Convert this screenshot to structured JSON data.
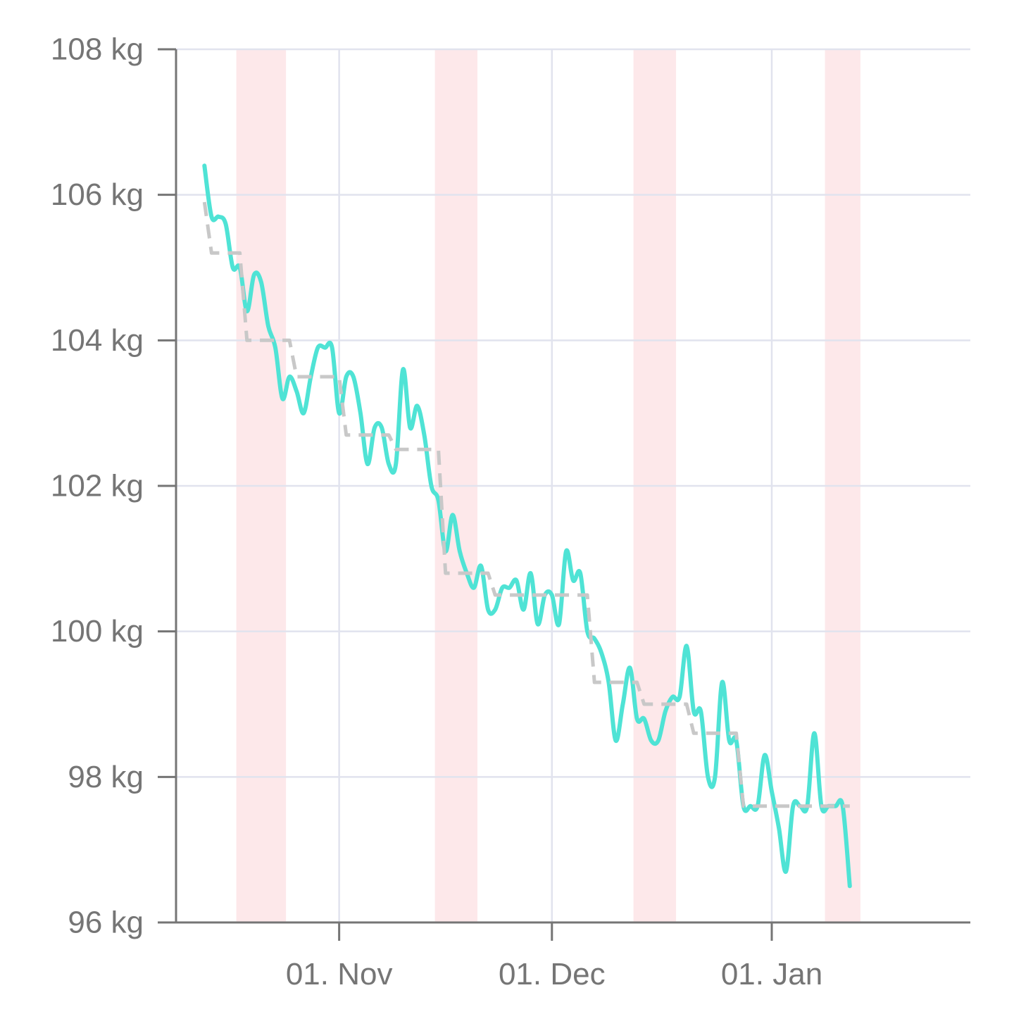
{
  "chart_data": {
    "type": "line",
    "title": "",
    "xlabel": "",
    "ylabel": "",
    "y_unit": "kg",
    "ylim": [
      96,
      108
    ],
    "y_ticks": [
      {
        "value": 108,
        "label": "108 kg"
      },
      {
        "value": 106,
        "label": "106 kg"
      },
      {
        "value": 104,
        "label": "104 kg"
      },
      {
        "value": 102,
        "label": "102 kg"
      },
      {
        "value": 100,
        "label": "100 kg"
      },
      {
        "value": 98,
        "label": "98 kg"
      },
      {
        "value": 96,
        "label": "96 kg"
      }
    ],
    "xlim": [
      "2023-10-09",
      "2024-01-29"
    ],
    "x_ticks": [
      {
        "date": "2023-11-01",
        "label": "01. Nov"
      },
      {
        "date": "2023-12-01",
        "label": "01. Dec"
      },
      {
        "date": "2024-01-01",
        "label": "01. Jan"
      }
    ],
    "grid": true,
    "legend": "none",
    "colors": {
      "weight_line": "#4fe3d5",
      "trend_line": "#c8c8c8",
      "band": "#fde8ea",
      "grid": "#e1e3ee",
      "axis": "#757575"
    },
    "highlight_bands": [
      {
        "start": "2023-10-18",
        "end": "2023-10-24"
      },
      {
        "start": "2023-11-15",
        "end": "2023-11-20"
      },
      {
        "start": "2023-12-13",
        "end": "2023-12-18"
      },
      {
        "start": "2024-01-09",
        "end": "2024-01-13"
      }
    ],
    "series": [
      {
        "style": "solid",
        "color": "#4fe3d5",
        "points": [
          [
            "2023-10-13",
            106.4
          ],
          [
            "2023-10-14",
            105.7
          ],
          [
            "2023-10-15",
            105.7
          ],
          [
            "2023-10-16",
            105.6
          ],
          [
            "2023-10-17",
            105.0
          ],
          [
            "2023-10-18",
            105.0
          ],
          [
            "2023-10-19",
            104.4
          ],
          [
            "2023-10-20",
            104.9
          ],
          [
            "2023-10-21",
            104.8
          ],
          [
            "2023-10-22",
            104.2
          ],
          [
            "2023-10-23",
            103.9
          ],
          [
            "2023-10-24",
            103.2
          ],
          [
            "2023-10-25",
            103.5
          ],
          [
            "2023-10-26",
            103.3
          ],
          [
            "2023-10-27",
            103.0
          ],
          [
            "2023-10-28",
            103.5
          ],
          [
            "2023-10-29",
            103.9
          ],
          [
            "2023-10-30",
            103.9
          ],
          [
            "2023-10-31",
            103.9
          ],
          [
            "2023-11-01",
            103.0
          ],
          [
            "2023-11-02",
            103.5
          ],
          [
            "2023-11-03",
            103.5
          ],
          [
            "2023-11-04",
            103.0
          ],
          [
            "2023-11-05",
            102.3
          ],
          [
            "2023-11-06",
            102.8
          ],
          [
            "2023-11-07",
            102.8
          ],
          [
            "2023-11-08",
            102.3
          ],
          [
            "2023-11-09",
            102.3
          ],
          [
            "2023-11-10",
            103.6
          ],
          [
            "2023-11-11",
            102.8
          ],
          [
            "2023-11-12",
            103.1
          ],
          [
            "2023-11-13",
            102.7
          ],
          [
            "2023-11-14",
            102.0
          ],
          [
            "2023-11-15",
            101.8
          ],
          [
            "2023-11-16",
            101.1
          ],
          [
            "2023-11-17",
            101.6
          ],
          [
            "2023-11-18",
            101.1
          ],
          [
            "2023-11-19",
            100.8
          ],
          [
            "2023-11-20",
            100.6
          ],
          [
            "2023-11-21",
            100.9
          ],
          [
            "2023-11-22",
            100.3
          ],
          [
            "2023-11-23",
            100.3
          ],
          [
            "2023-11-24",
            100.6
          ],
          [
            "2023-11-25",
            100.6
          ],
          [
            "2023-11-26",
            100.7
          ],
          [
            "2023-11-27",
            100.3
          ],
          [
            "2023-11-28",
            100.8
          ],
          [
            "2023-11-29",
            100.1
          ],
          [
            "2023-11-30",
            100.5
          ],
          [
            "2023-12-01",
            100.5
          ],
          [
            "2023-12-02",
            100.1
          ],
          [
            "2023-12-03",
            101.1
          ],
          [
            "2023-12-04",
            100.7
          ],
          [
            "2023-12-05",
            100.8
          ],
          [
            "2023-12-06",
            100.0
          ],
          [
            "2023-12-07",
            99.9
          ],
          [
            "2023-12-08",
            99.7
          ],
          [
            "2023-12-09",
            99.3
          ],
          [
            "2023-12-10",
            98.5
          ],
          [
            "2023-12-11",
            99.0
          ],
          [
            "2023-12-12",
            99.5
          ],
          [
            "2023-12-13",
            98.8
          ],
          [
            "2023-12-14",
            98.8
          ],
          [
            "2023-12-15",
            98.5
          ],
          [
            "2023-12-16",
            98.5
          ],
          [
            "2023-12-17",
            98.9
          ],
          [
            "2023-12-18",
            99.1
          ],
          [
            "2023-12-19",
            99.1
          ],
          [
            "2023-12-20",
            99.8
          ],
          [
            "2023-12-21",
            98.9
          ],
          [
            "2023-12-22",
            98.9
          ],
          [
            "2023-12-23",
            98.0
          ],
          [
            "2023-12-24",
            98.0
          ],
          [
            "2023-12-25",
            99.3
          ],
          [
            "2023-12-26",
            98.5
          ],
          [
            "2023-12-27",
            98.5
          ],
          [
            "2023-12-28",
            97.6
          ],
          [
            "2023-12-29",
            97.6
          ],
          [
            "2023-12-30",
            97.6
          ],
          [
            "2023-12-31",
            98.3
          ],
          [
            "2024-01-01",
            97.8
          ],
          [
            "2024-01-02",
            97.3
          ],
          [
            "2024-01-03",
            96.7
          ],
          [
            "2024-01-04",
            97.6
          ],
          [
            "2024-01-05",
            97.6
          ],
          [
            "2024-01-06",
            97.6
          ],
          [
            "2024-01-07",
            98.6
          ],
          [
            "2024-01-08",
            97.6
          ],
          [
            "2024-01-09",
            97.6
          ],
          [
            "2024-01-10",
            97.6
          ],
          [
            "2024-01-11",
            97.6
          ],
          [
            "2024-01-12",
            96.5
          ]
        ]
      },
      {
        "style": "dashed",
        "color": "#c8c8c8",
        "points": [
          [
            "2023-10-13",
            105.9
          ],
          [
            "2023-10-14",
            105.2
          ],
          [
            "2023-10-18",
            105.2
          ],
          [
            "2023-10-19",
            104.0
          ],
          [
            "2023-10-25",
            104.0
          ],
          [
            "2023-10-26",
            103.5
          ],
          [
            "2023-11-01",
            103.5
          ],
          [
            "2023-11-02",
            102.7
          ],
          [
            "2023-11-08",
            102.7
          ],
          [
            "2023-11-09",
            102.5
          ],
          [
            "2023-11-15",
            102.5
          ],
          [
            "2023-11-16",
            100.8
          ],
          [
            "2023-11-22",
            100.8
          ],
          [
            "2023-11-23",
            100.5
          ],
          [
            "2023-11-29",
            100.5
          ],
          [
            "2023-11-30",
            100.5
          ],
          [
            "2023-12-06",
            100.5
          ],
          [
            "2023-12-07",
            99.3
          ],
          [
            "2023-12-13",
            99.3
          ],
          [
            "2023-12-14",
            99.0
          ],
          [
            "2023-12-20",
            99.0
          ],
          [
            "2023-12-21",
            98.6
          ],
          [
            "2023-12-27",
            98.6
          ],
          [
            "2023-12-28",
            97.6
          ],
          [
            "2024-01-12",
            97.6
          ]
        ]
      }
    ]
  }
}
